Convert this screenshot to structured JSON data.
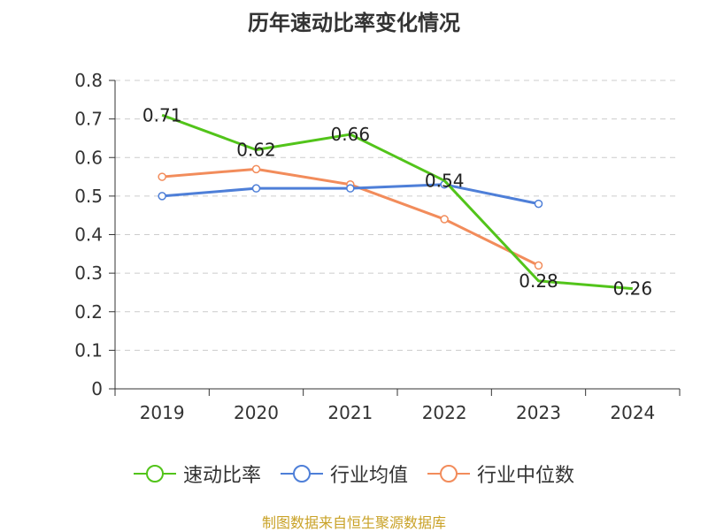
{
  "chart_data": {
    "type": "line",
    "title": "历年速动比率变化情况",
    "categories": [
      "2019",
      "2020",
      "2021",
      "2022",
      "2023",
      "2024"
    ],
    "ylim": [
      0,
      0.8
    ],
    "yticks": [
      "0",
      "0.1",
      "0.2",
      "0.3",
      "0.4",
      "0.5",
      "0.6",
      "0.7",
      "0.8"
    ],
    "ytick_values": [
      0,
      0.1,
      0.2,
      0.3,
      0.4,
      0.5,
      0.6,
      0.7,
      0.8
    ],
    "grid": true,
    "legend_position": "bottom",
    "series": [
      {
        "name": "速动比率",
        "color": "#52c41a",
        "values": [
          0.71,
          0.62,
          0.66,
          0.54,
          0.28,
          0.26
        ],
        "show_labels": true,
        "labels": [
          "0.71",
          "0.62",
          "0.66",
          "0.54",
          "0.28",
          "0.26"
        ]
      },
      {
        "name": "行业均值",
        "color": "#4e7fd8",
        "values": [
          0.5,
          0.52,
          0.52,
          0.53,
          0.48,
          null
        ],
        "show_labels": false
      },
      {
        "name": "行业中位数",
        "color": "#f28c5b",
        "values": [
          0.55,
          0.57,
          0.53,
          0.44,
          0.32,
          null
        ],
        "show_labels": false
      }
    ],
    "source": "制图数据来自恒生聚源数据库"
  }
}
